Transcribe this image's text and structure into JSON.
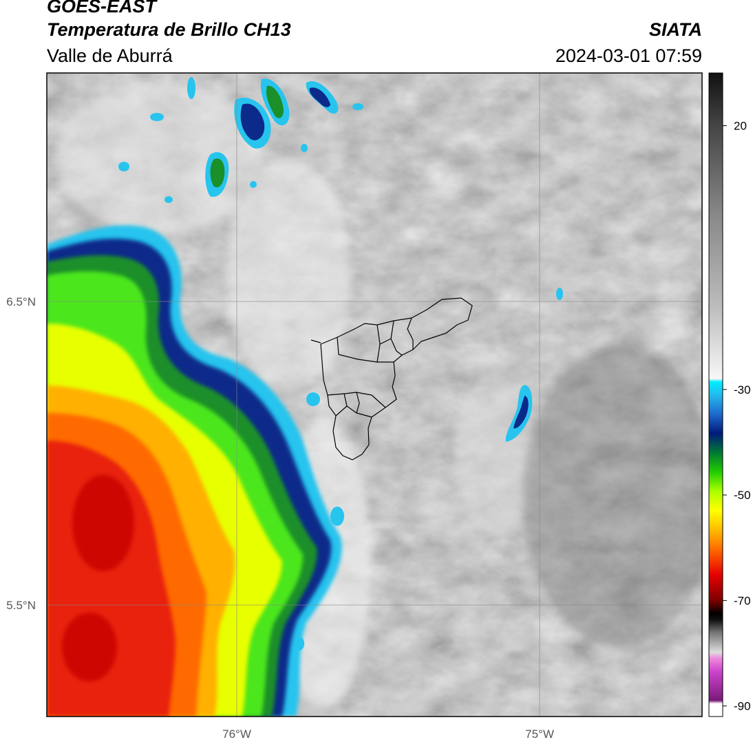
{
  "header": {
    "satellite": "GOES-EAST",
    "product": "Temperatura de Brillo CH13",
    "region": "Valle de Aburrá",
    "organization": "SIATA",
    "timestamp": "2024-03-01 07:59"
  },
  "map": {
    "lon_ticks": [
      {
        "value": -76.0,
        "label": "76°W"
      },
      {
        "value": -75.0,
        "label": "75°W"
      }
    ],
    "lat_ticks": [
      {
        "value": 6.5,
        "label": "6.5°N"
      },
      {
        "value": 5.5,
        "label": "5.5°N"
      }
    ],
    "lon_range": [
      -76.625,
      -74.45
    ],
    "lat_range": [
      5.13,
      7.25
    ],
    "colors": {
      "frame": "#000000",
      "gridline": "#888888",
      "boundary": "#000000"
    }
  },
  "colorbar": {
    "ticks": [
      {
        "value": 20,
        "label": "20"
      },
      {
        "value": -30,
        "label": "-30"
      },
      {
        "value": -50,
        "label": "-50"
      },
      {
        "value": -70,
        "label": "-70"
      },
      {
        "value": -90,
        "label": "-90"
      }
    ],
    "range": [
      -92,
      30
    ]
  }
}
